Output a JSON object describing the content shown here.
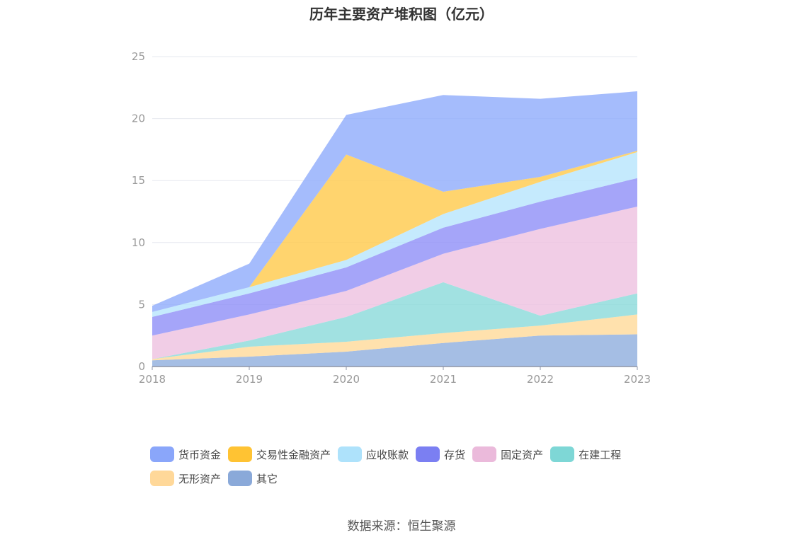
{
  "title": "历年主要资产堆积图（亿元）",
  "source": "数据来源：恒生聚源",
  "chart_data": {
    "type": "area",
    "stacked": true,
    "title": "历年主要资产堆积图（亿元）",
    "categories": [
      "2018",
      "2019",
      "2020",
      "2021",
      "2022",
      "2023"
    ],
    "ylim": [
      0,
      25
    ],
    "yticks": [
      0,
      5,
      10,
      15,
      20,
      25
    ],
    "grid": true,
    "legend_position": "bottom",
    "series": [
      {
        "name": "其它",
        "color": "#8faedd",
        "values": [
          0.5,
          0.8,
          1.2,
          1.9,
          2.5,
          2.6
        ]
      },
      {
        "name": "无形资产",
        "color": "#ffd999",
        "values": [
          0.1,
          0.8,
          0.8,
          0.8,
          0.8,
          1.6
        ]
      },
      {
        "name": "在建工程",
        "color": "#8ad9d9",
        "values": [
          0.0,
          0.5,
          2.0,
          4.1,
          0.8,
          1.7
        ]
      },
      {
        "name": "固定资产",
        "color": "#eec1e0",
        "values": [
          1.9,
          2.1,
          2.1,
          2.3,
          7.0,
          7.0
        ]
      },
      {
        "name": "存货",
        "color": "#8e8ff7",
        "values": [
          1.5,
          1.7,
          1.9,
          2.1,
          2.2,
          2.3
        ]
      },
      {
        "name": "应收账款",
        "color": "#b7e5fc",
        "values": [
          0.4,
          0.5,
          0.6,
          1.1,
          1.6,
          2.1
        ]
      },
      {
        "name": "交易性金融资产",
        "color": "#ffc94a",
        "values": [
          0.0,
          0.0,
          8.5,
          1.8,
          0.4,
          0.1
        ]
      },
      {
        "name": "货币资金",
        "color": "#8fabfb",
        "values": [
          0.5,
          1.9,
          3.2,
          7.8,
          6.3,
          4.8
        ]
      }
    ]
  },
  "legend": [
    {
      "label": "货币资金",
      "color": "#8aa6fa"
    },
    {
      "label": "交易性金融资产",
      "color": "#ffc333"
    },
    {
      "label": "应收账款",
      "color": "#aee2fb"
    },
    {
      "label": "存货",
      "color": "#7b7ff2"
    },
    {
      "label": "固定资产",
      "color": "#ebbadb"
    },
    {
      "label": "在建工程",
      "color": "#7ed7d6"
    },
    {
      "label": "无形资产",
      "color": "#ffd899"
    },
    {
      "label": "其它",
      "color": "#8aa9d9"
    }
  ]
}
